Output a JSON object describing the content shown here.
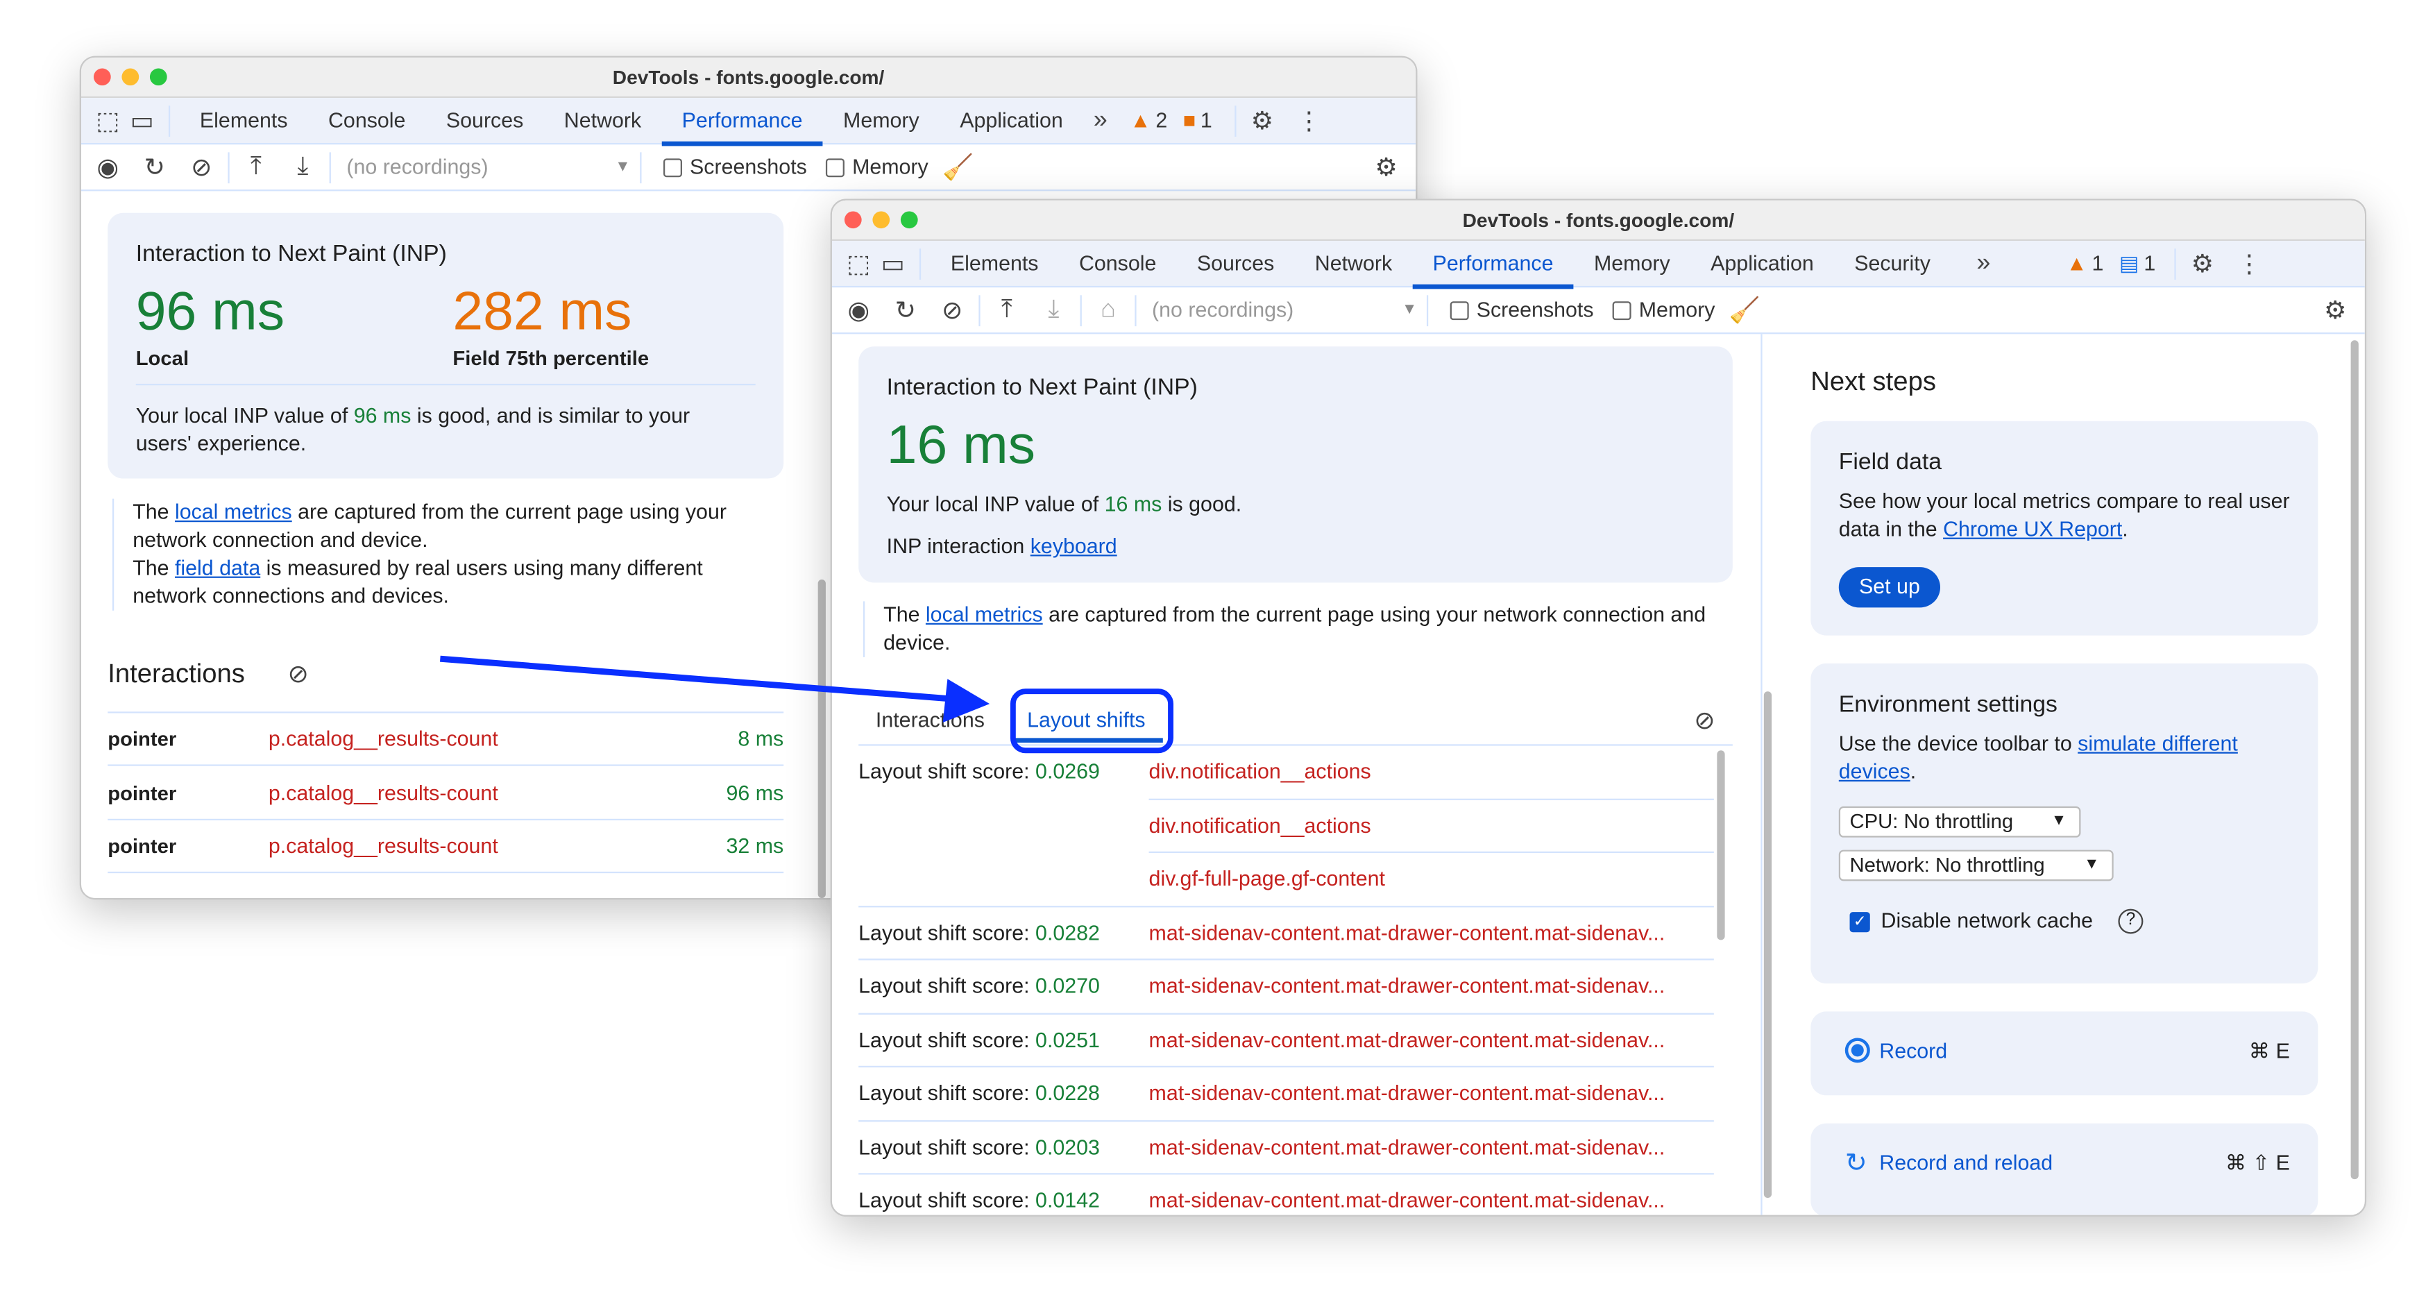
{
  "window1": {
    "title": "DevTools - fonts.google.com/",
    "tabs": [
      "Elements",
      "Console",
      "Sources",
      "Network",
      "Performance",
      "Memory",
      "Application"
    ],
    "active_tab": "Performance",
    "warnings": "2",
    "issues": "1",
    "recordings_placeholder": "(no recordings)",
    "screenshots_label": "Screenshots",
    "memory_label": "Memory",
    "inp": {
      "title": "Interaction to Next Paint (INP)",
      "local_value": "96 ms",
      "local_label": "Local",
      "field_value": "282 ms",
      "field_label": "Field 75th percentile",
      "desc_pre": "Your local INP value of ",
      "desc_value": "96 ms",
      "desc_post": " is good, and is similar to your users' experience."
    },
    "info": {
      "p1_pre": "The ",
      "p1_link": "local metrics",
      "p1_post": " are captured from the current page using your network connection and device.",
      "p2_pre": "The ",
      "p2_link": "field data",
      "p2_post": " is measured by real users using many different network connections and devices."
    },
    "interactions_title": "Interactions",
    "interactions": [
      {
        "type": "pointer",
        "target": "p.catalog__results-count",
        "time": "8 ms"
      },
      {
        "type": "pointer",
        "target": "p.catalog__results-count",
        "time": "96 ms"
      },
      {
        "type": "pointer",
        "target": "p.catalog__results-count",
        "time": "32 ms"
      }
    ]
  },
  "window2": {
    "title": "DevTools - fonts.google.com/",
    "tabs": [
      "Elements",
      "Console",
      "Sources",
      "Network",
      "Performance",
      "Memory",
      "Application",
      "Security"
    ],
    "active_tab": "Performance",
    "warnings": "1",
    "issues": "1",
    "recordings_placeholder": "(no recordings)",
    "screenshots_label": "Screenshots",
    "memory_label": "Memory",
    "inp": {
      "title": "Interaction to Next Paint (INP)",
      "value": "16 ms",
      "desc_pre": "Your local INP value of ",
      "desc_value": "16 ms",
      "desc_post": " is good.",
      "interaction_label": "INP interaction ",
      "interaction_link": "keyboard"
    },
    "info": {
      "pre": "The ",
      "link": "local metrics",
      "post": " are captured from the current page using your network connection and device."
    },
    "subtabs": [
      "Interactions",
      "Layout shifts"
    ],
    "active_subtab": "Layout shifts",
    "score_label": "Layout shift score: ",
    "shifts": [
      {
        "score": "0.0269",
        "nodes": [
          "div.notification__actions",
          "div.notification__actions",
          "div.gf-full-page.gf-content"
        ]
      },
      {
        "score": "0.0282",
        "nodes": [
          "mat-sidenav-content.mat-drawer-content.mat-sidenav..."
        ]
      },
      {
        "score": "0.0270",
        "nodes": [
          "mat-sidenav-content.mat-drawer-content.mat-sidenav..."
        ]
      },
      {
        "score": "0.0251",
        "nodes": [
          "mat-sidenav-content.mat-drawer-content.mat-sidenav..."
        ]
      },
      {
        "score": "0.0228",
        "nodes": [
          "mat-sidenav-content.mat-drawer-content.mat-sidenav..."
        ]
      },
      {
        "score": "0.0203",
        "nodes": [
          "mat-sidenav-content.mat-drawer-content.mat-sidenav..."
        ]
      },
      {
        "score": "0.0142",
        "nodes": [
          "mat-sidenav-content.mat-drawer-content.mat-sidenav..."
        ]
      }
    ],
    "next_steps": {
      "title": "Next steps",
      "field": {
        "title": "Field data",
        "pre": "See how your local metrics compare to real user data in the ",
        "link": "Chrome UX Report",
        "post": ".",
        "button": "Set up"
      },
      "env": {
        "title": "Environment settings",
        "pre": "Use the device toolbar to ",
        "link": "simulate different devices",
        "post": ".",
        "cpu": "CPU: No throttling",
        "network": "Network: No throttling",
        "cache_label": "Disable network cache",
        "cache_checked": true
      },
      "record": {
        "label": "Record",
        "shortcut": "⌘ E"
      },
      "reload": {
        "label": "Record and reload",
        "shortcut": "⌘ ⇧ E"
      }
    }
  },
  "colors": {
    "accent": "#0b57d0",
    "good": "#188038",
    "needs_improvement": "#e8710a",
    "annotation": "#0a2fff"
  }
}
